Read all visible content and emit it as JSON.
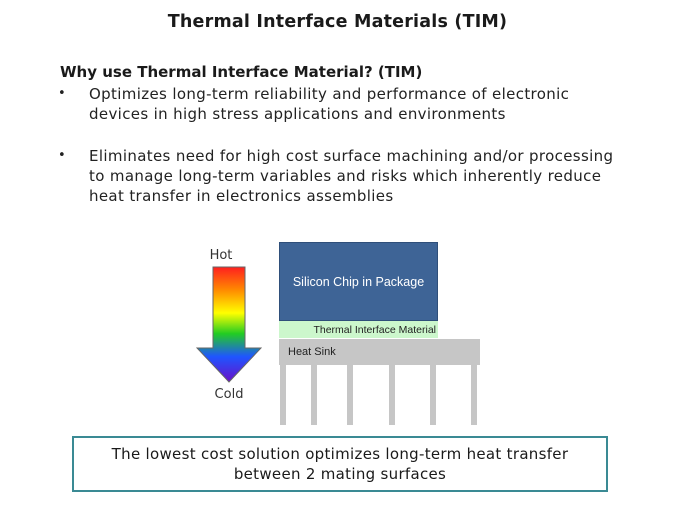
{
  "title": "Thermal Interface Materials (TIM)",
  "subheading": "Why use Thermal Interface Material? (TIM)",
  "bullets": [
    {
      "marker": "•",
      "text": "Optimizes long-term reliability and performance of electronic devices in high stress applications and environments"
    },
    {
      "marker": "•",
      "text": "Eliminates need for high cost surface machining and/or processing to manage long-term variables and risks which inherently reduce heat transfer in electronics assemblies"
    }
  ],
  "diagram": {
    "hot_label": "Hot",
    "cold_label": "Cold",
    "chip_label": "Silicon Chip in Package",
    "tim_label": "Thermal Interface Material",
    "heat_sink_label": "Heat Sink",
    "colors": {
      "chip": "#3e6496",
      "tim": "#ccf7cc",
      "heat_sink": "#c6c6c6",
      "gradient": [
        "#ff1f1f",
        "#ff8a00",
        "#ffff00",
        "#22cc22",
        "#1f55ff",
        "#6a10c8"
      ]
    }
  },
  "callout": {
    "text": "The lowest cost solution optimizes long-term heat transfer between 2 mating surfaces",
    "border_color": "#3a8a94"
  }
}
